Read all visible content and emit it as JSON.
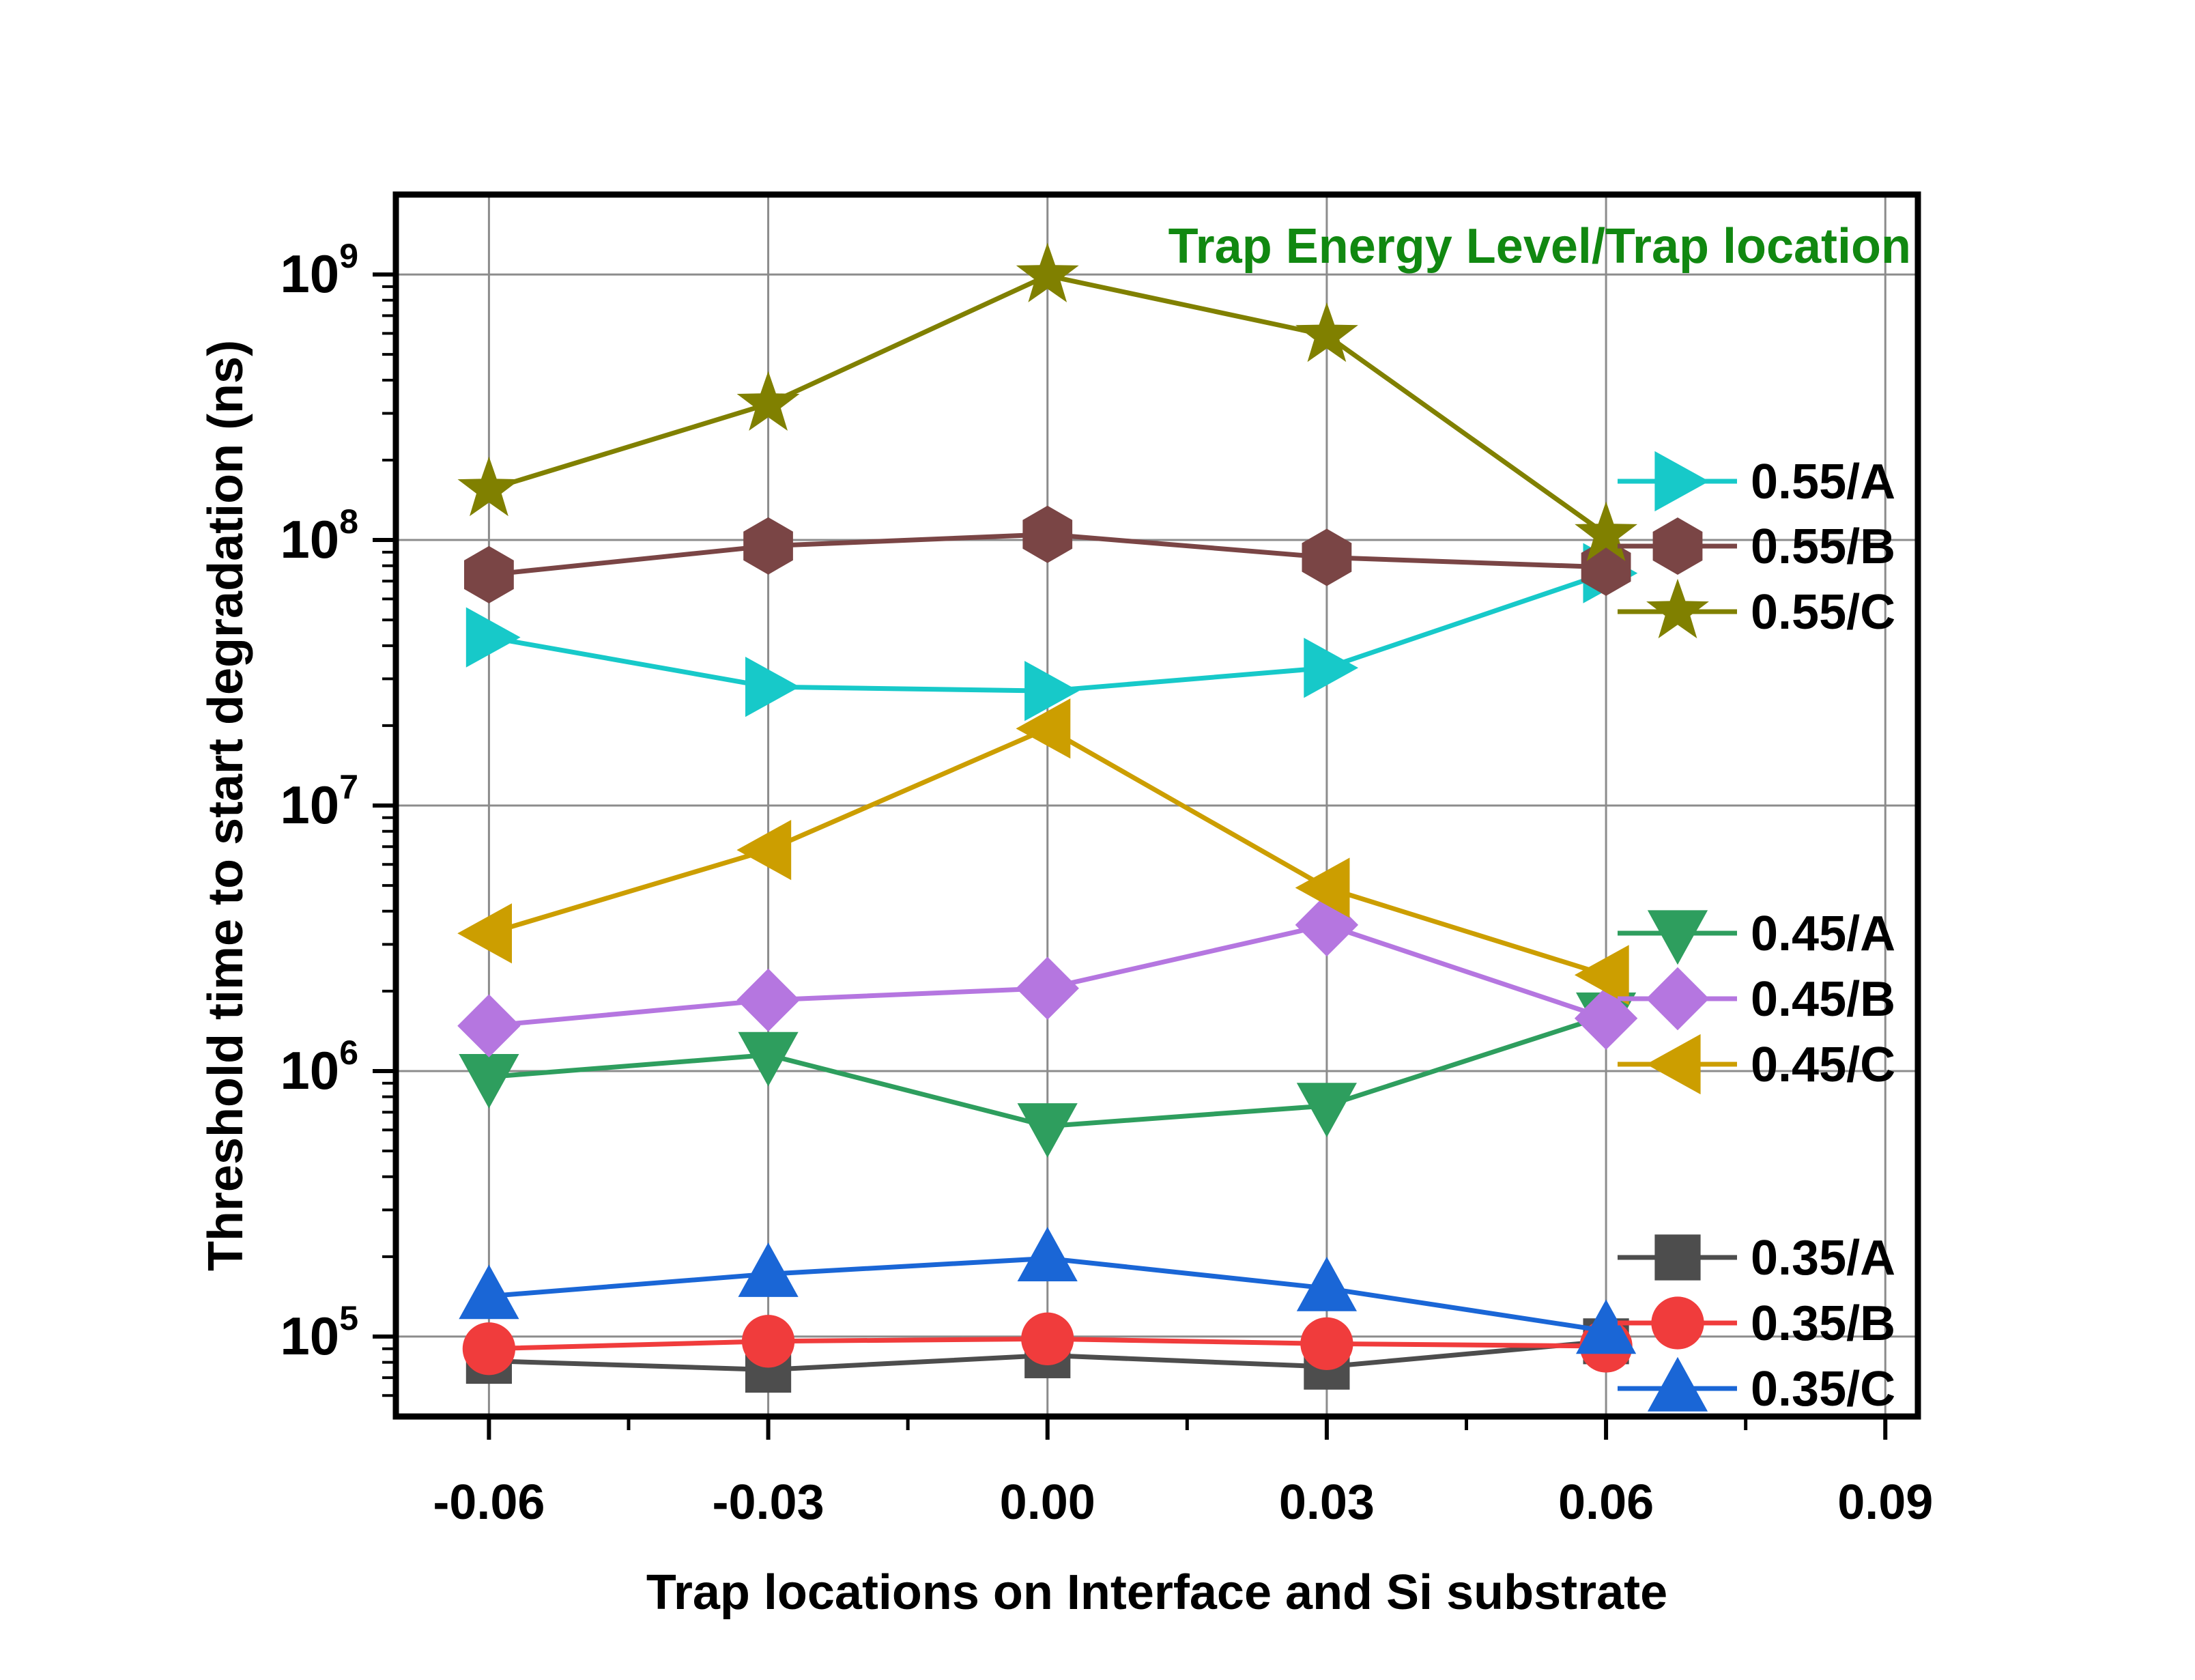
{
  "chart_data": {
    "type": "line",
    "title": "Trap Energy Level/Trap location",
    "xlabel": "Trap locations on Interface and Si substrate",
    "ylabel": "Threshold time to start degradation (ns)",
    "x": [
      -0.06,
      -0.03,
      0.0,
      0.03,
      0.06
    ],
    "xlim": [
      -0.07,
      0.0935
    ],
    "xticks": [
      -0.06,
      -0.03,
      0.0,
      0.03,
      0.06,
      0.09
    ],
    "xtick_labels": [
      "-0.06",
      "-0.03",
      "0.00",
      "0.03",
      "0.06",
      "0.09"
    ],
    "y_scale": "log",
    "ylim": [
      50000,
      2000000000
    ],
    "yticks": [
      100000,
      1000000,
      10000000,
      100000000,
      1000000000
    ],
    "ytick_labels": [
      {
        "base": "10",
        "exp": "5"
      },
      {
        "base": "10",
        "exp": "6"
      },
      {
        "base": "10",
        "exp": "7"
      },
      {
        "base": "10",
        "exp": "8"
      },
      {
        "base": "10",
        "exp": "9"
      }
    ],
    "grid": true,
    "legend_position": "right",
    "series": [
      {
        "name": "0.55/A",
        "color": "#17c9c9",
        "marker": "triangle-right",
        "values": [
          43000000,
          28000000,
          27000000,
          33000000,
          75000000
        ]
      },
      {
        "name": "0.55/B",
        "color": "#7a4545",
        "marker": "hexagon",
        "values": [
          74000000,
          95000000,
          105000000,
          86000000,
          79000000
        ]
      },
      {
        "name": "0.55/C",
        "color": "#808000",
        "marker": "star",
        "values": [
          155000000,
          325000000,
          990000000,
          590000000,
          105000000
        ]
      },
      {
        "name": "0.45/A",
        "color": "#2e9e5e",
        "marker": "triangle-down",
        "values": [
          950000,
          1150000,
          620000,
          740000,
          1620000
        ]
      },
      {
        "name": "0.45/B",
        "color": "#b576e0",
        "marker": "diamond",
        "values": [
          1480000,
          1850000,
          2050000,
          3550000,
          1580000
        ]
      },
      {
        "name": "0.45/C",
        "color": "#cc9e00",
        "marker": "triangle-left",
        "values": [
          3300000,
          6800000,
          19500000,
          4900000,
          2300000
        ]
      },
      {
        "name": "0.35/A",
        "color": "#4d4d4d",
        "marker": "square",
        "values": [
          81000,
          75000,
          85000,
          77000,
          96000
        ]
      },
      {
        "name": "0.35/B",
        "color": "#f03c3c",
        "marker": "circle",
        "values": [
          90000,
          96000,
          98000,
          94000,
          92000
        ]
      },
      {
        "name": "0.35/C",
        "color": "#1a66d6",
        "marker": "triangle-up",
        "values": [
          142000,
          172000,
          197000,
          152000,
          105000
        ]
      }
    ]
  }
}
